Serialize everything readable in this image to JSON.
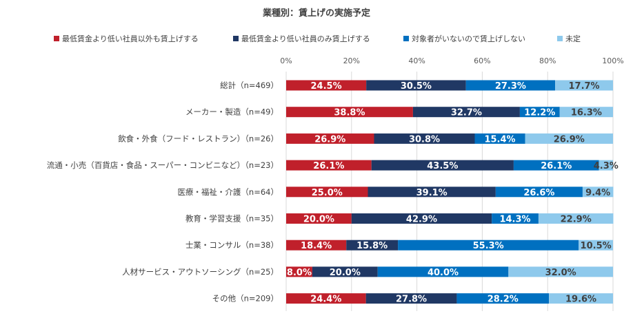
{
  "chart_data": {
    "type": "bar",
    "orientation": "horizontal",
    "stacked": true,
    "title": "業種別：賃上げの実施予定",
    "legend_position": "top",
    "grid": true,
    "xlim": [
      0,
      100
    ],
    "x_ticks": [
      "0%",
      "20%",
      "40%",
      "60%",
      "80%",
      "100%"
    ],
    "categories": [
      "総計（n=469）",
      "メーカー・製造（n=49）",
      "飲食・外食（フード・レストラン）（n=26）",
      "流通・小売（百貨店・食品・スーパー・コンビニなど）（n=23）",
      "医療・福祉・介護（n=64）",
      "教育・学習支援（n=35）",
      "士業・コンサル（n=38）",
      "人材サービス・アウトソーシング（n=25）",
      "その他（n=209）"
    ],
    "series": [
      {
        "name": "最低賃金より低い社員以外も賃上げする",
        "color": "#C0202B",
        "label_color": "#ffffff",
        "values": [
          24.5,
          38.8,
          26.9,
          26.1,
          25.0,
          20.0,
          18.4,
          8.0,
          24.4
        ]
      },
      {
        "name": "最低賃金より低い社員のみ賃上げする",
        "color": "#203864",
        "label_color": "#ffffff",
        "values": [
          30.5,
          32.7,
          30.8,
          43.5,
          39.1,
          42.9,
          15.8,
          20.0,
          27.8
        ]
      },
      {
        "name": "対象者がいないので賃上げしない",
        "color": "#0070C0",
        "label_color": "#ffffff",
        "values": [
          27.3,
          12.2,
          15.4,
          26.1,
          26.6,
          14.3,
          55.3,
          40.0,
          28.2
        ]
      },
      {
        "name": "未定",
        "color": "#8EC9EC",
        "label_color": "#404040",
        "values": [
          17.7,
          16.3,
          26.9,
          4.3,
          9.4,
          22.9,
          10.5,
          32.0,
          19.6
        ]
      }
    ]
  }
}
